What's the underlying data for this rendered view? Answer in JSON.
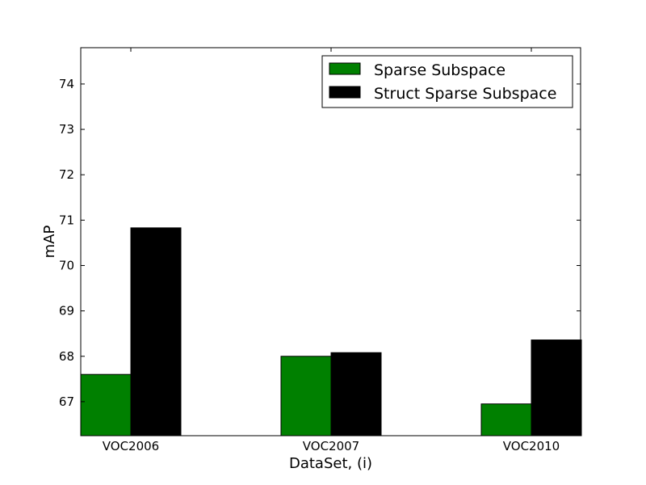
{
  "chart_data": {
    "type": "bar",
    "title": "",
    "xlabel": "DataSet, (i)",
    "ylabel": "mAP",
    "categories": [
      "VOC2006",
      "VOC2007",
      "VOC2010"
    ],
    "series": [
      {
        "name": "Sparse Subspace",
        "values": [
          67.6,
          68.0,
          66.95
        ],
        "color": "#008000"
      },
      {
        "name": "Struct Sparse Subspace",
        "values": [
          70.83,
          68.08,
          68.36
        ],
        "color": "#000000"
      }
    ],
    "ylim": [
      66.25,
      74.8
    ],
    "yticks": [
      67,
      68,
      69,
      70,
      71,
      72,
      73,
      74
    ],
    "grid": false,
    "legend_position": "top-right"
  }
}
